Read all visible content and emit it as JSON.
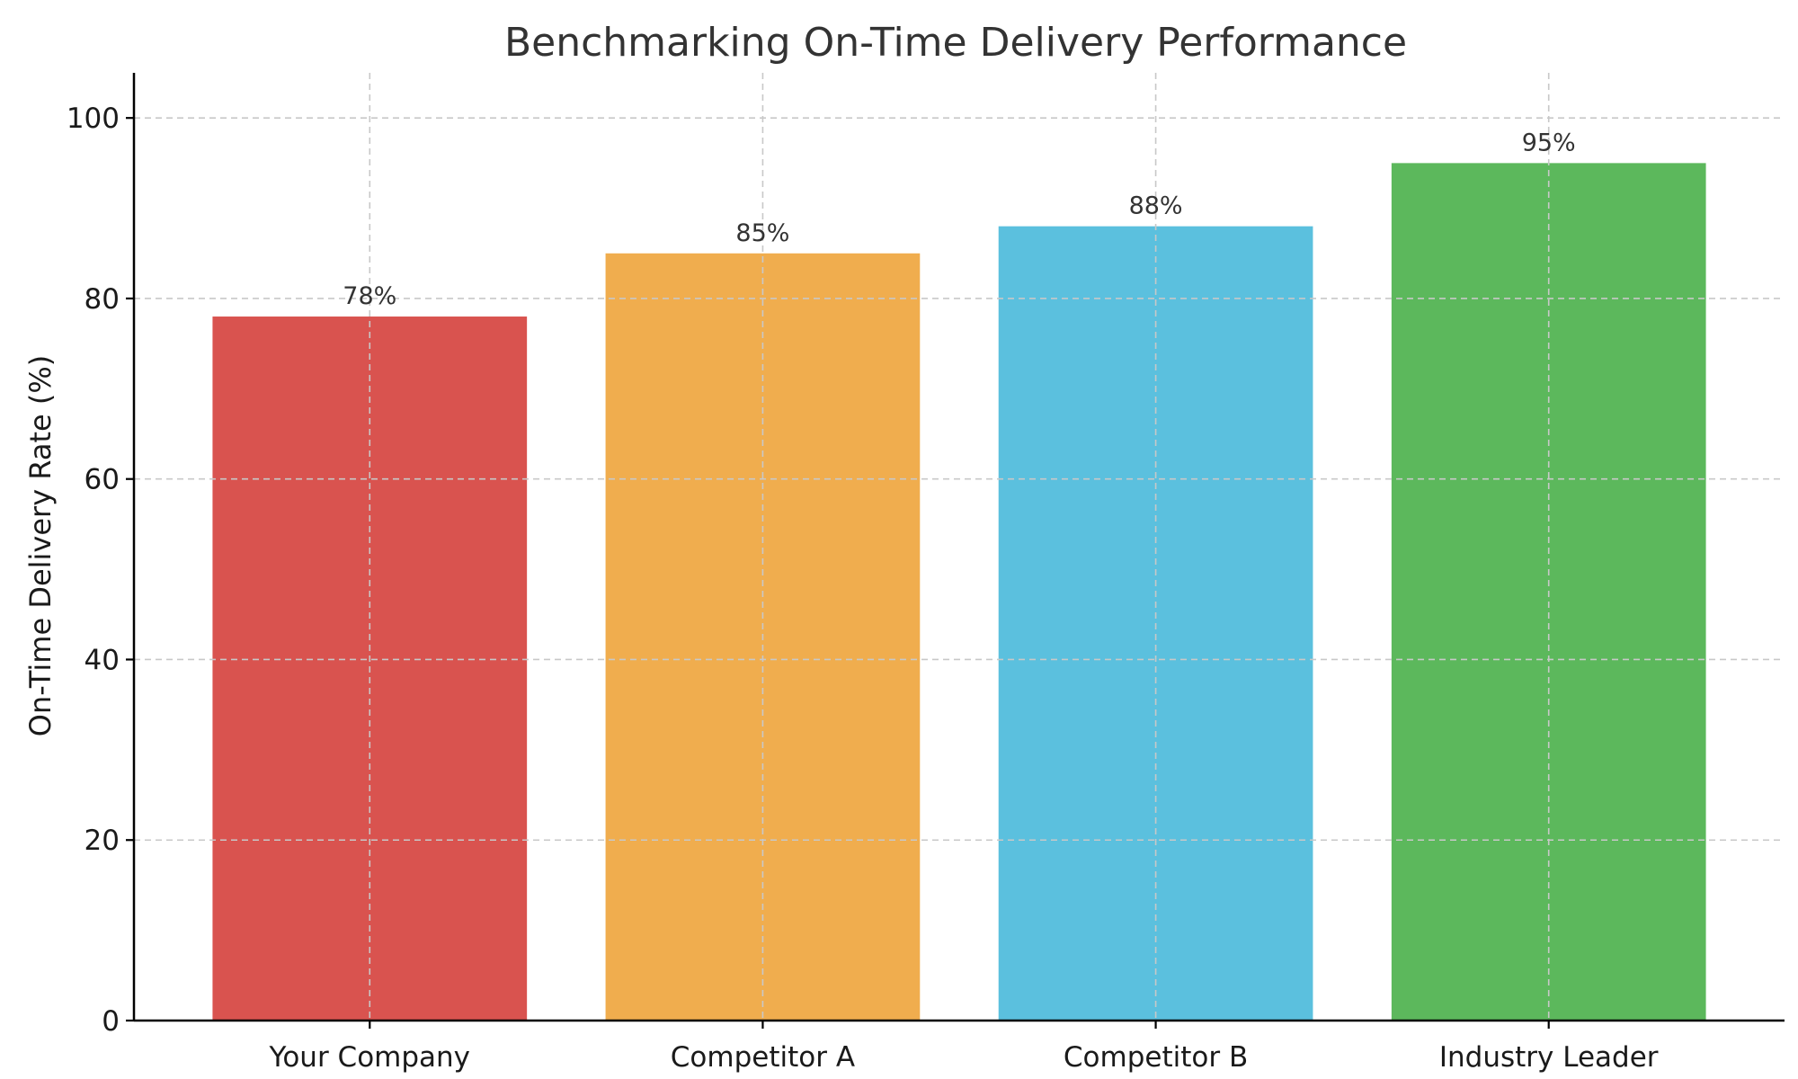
{
  "chart_data": {
    "type": "bar",
    "title": "Benchmarking On-Time Delivery Performance",
    "xlabel": "",
    "ylabel": "On-Time Delivery Rate (%)",
    "categories": [
      "Your Company",
      "Competitor A",
      "Competitor B",
      "Industry Leader"
    ],
    "values": [
      78,
      85,
      88,
      95
    ],
    "value_labels": [
      "78%",
      "85%",
      "88%",
      "95%"
    ],
    "colors": [
      "#d9534f",
      "#f0ad4e",
      "#5bc0de",
      "#5cb85c"
    ],
    "ylim": [
      0,
      105
    ],
    "yticks": [
      0,
      20,
      40,
      60,
      80,
      100
    ],
    "ytick_labels": [
      "0",
      "20",
      "40",
      "60",
      "80",
      "100"
    ],
    "grid": true,
    "legend": "none"
  }
}
